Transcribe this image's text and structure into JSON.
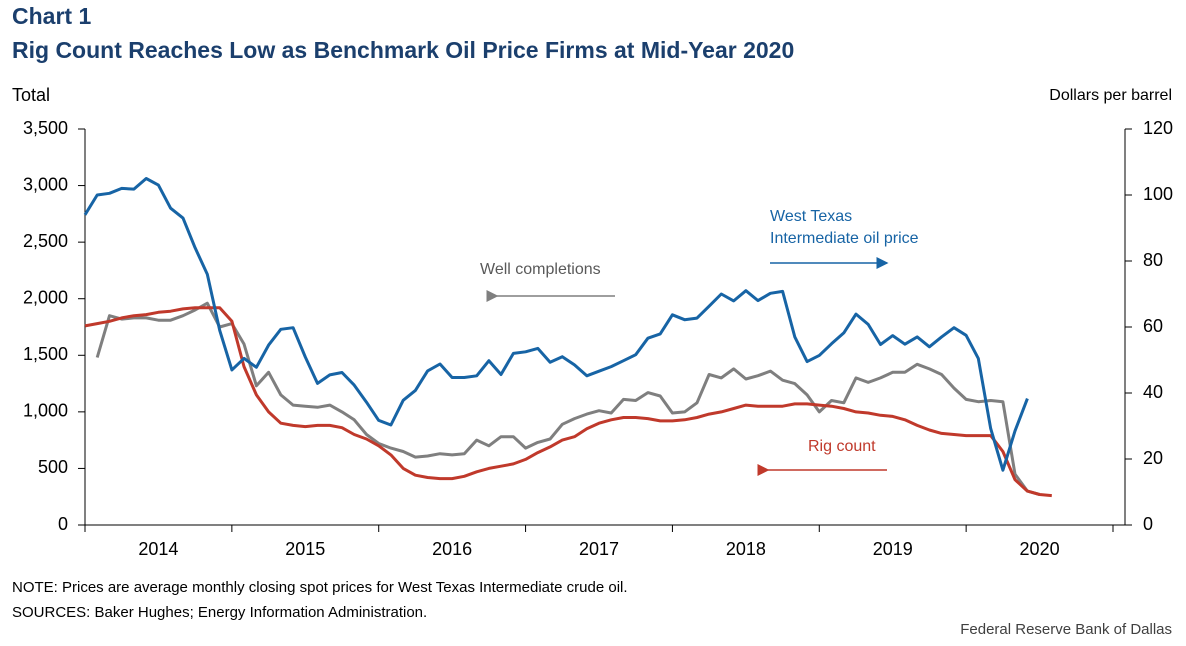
{
  "chart_data": {
    "type": "line",
    "title": "Chart 1",
    "subtitle": "Rig Count Reaches Low as Benchmark Oil Price Firms at Mid-Year 2020",
    "y_label": "Total",
    "y2_label": "Dollars per barrel",
    "ylim": [
      0,
      3500
    ],
    "yticks": [
      0,
      500,
      {
        "value": 1000,
        "label": "1,000"
      },
      {
        "value": 1500,
        "label": "1,500"
      },
      {
        "value": 2000,
        "label": "2,000"
      },
      {
        "value": 2500,
        "label": "2,500"
      },
      {
        "value": 3000,
        "label": "3,000"
      },
      {
        "value": 3500,
        "label": "3,500"
      }
    ],
    "y2lim": [
      0,
      120
    ],
    "y2ticks": [
      0,
      20,
      40,
      60,
      80,
      100,
      120
    ],
    "xlim": [
      2014,
      2021
    ],
    "xticks": [
      2014,
      2015,
      2016,
      2017,
      2018,
      2019,
      2020,
      2021
    ],
    "xtick_labels": [
      "2014",
      "2015",
      "2016",
      "2017",
      "2018",
      "2019",
      "2020"
    ],
    "x": [
      2014,
      2014.083,
      2014.167,
      2014.25,
      2014.333,
      2014.417,
      2014.5,
      2014.583,
      2014.667,
      2014.75,
      2014.833,
      2014.917,
      2015,
      2015.083,
      2015.167,
      2015.25,
      2015.333,
      2015.417,
      2015.5,
      2015.583,
      2015.667,
      2015.75,
      2015.833,
      2015.917,
      2016,
      2016.083,
      2016.167,
      2016.25,
      2016.333,
      2016.417,
      2016.5,
      2016.583,
      2016.667,
      2016.75,
      2016.833,
      2016.917,
      2017,
      2017.083,
      2017.167,
      2017.25,
      2017.333,
      2017.417,
      2017.5,
      2017.583,
      2017.667,
      2017.75,
      2017.833,
      2017.917,
      2018,
      2018.083,
      2018.167,
      2018.25,
      2018.333,
      2018.417,
      2018.5,
      2018.583,
      2018.667,
      2018.75,
      2018.833,
      2018.917,
      2019,
      2019.083,
      2019.167,
      2019.25,
      2019.333,
      2019.417,
      2019.5,
      2019.583,
      2019.667,
      2019.75,
      2019.833,
      2019.917,
      2020,
      2020.083,
      2020.167,
      2020.25,
      2020.333,
      2020.417,
      2020.5,
      2020.583
    ],
    "series": [
      {
        "name": "Well completions",
        "color": "#7f7f7f",
        "values": [
          null,
          1480,
          1850,
          1820,
          1830,
          1830,
          1810,
          1810,
          1850,
          1900,
          1960,
          1750,
          1780,
          1600,
          1230,
          1350,
          1150,
          1060,
          1050,
          1040,
          1060,
          1000,
          930,
          800,
          720,
          680,
          650,
          600,
          610,
          630,
          620,
          630,
          750,
          700,
          780,
          780,
          680,
          730,
          760,
          890,
          940,
          980,
          1010,
          990,
          1110,
          1100,
          1170,
          1140,
          990,
          1000,
          1080,
          1330,
          1300,
          1380,
          1290,
          1320,
          1360,
          1280,
          1250,
          1150,
          1000,
          1100,
          1080,
          1300,
          1260,
          1300,
          1350,
          1350,
          1420,
          1380,
          1330,
          1210,
          1110,
          1090,
          1100,
          1090,
          450,
          300,
          270,
          null
        ]
      },
      {
        "name": "Rig count",
        "color": "#c0392b",
        "values": [
          1760,
          1780,
          1800,
          1830,
          1850,
          1860,
          1880,
          1890,
          1910,
          1920,
          1920,
          1920,
          1800,
          1400,
          1150,
          1000,
          900,
          880,
          870,
          880,
          880,
          860,
          800,
          760,
          700,
          620,
          500,
          440,
          420,
          410,
          410,
          430,
          470,
          500,
          520,
          540,
          580,
          640,
          690,
          750,
          780,
          850,
          900,
          930,
          950,
          950,
          940,
          920,
          920,
          930,
          950,
          980,
          1000,
          1030,
          1060,
          1050,
          1050,
          1050,
          1070,
          1070,
          1060,
          1050,
          1030,
          1000,
          990,
          970,
          960,
          930,
          880,
          840,
          810,
          800,
          790,
          790,
          790,
          650,
          400,
          300,
          270,
          260
        ]
      },
      {
        "name": "West Texas Intermediate oil price",
        "color": "#1764a5",
        "axis": "y2",
        "values": [
          94,
          100,
          100.5,
          102,
          101.8,
          105,
          103,
          96,
          93,
          84,
          76,
          59,
          47,
          50.5,
          47.8,
          54.5,
          59.3,
          59.8,
          50.9,
          42.9,
          45.5,
          46.2,
          42.4,
          37.2,
          31.7,
          30.3,
          37.8,
          40.8,
          46.7,
          48.8,
          44.7,
          44.7,
          45.2,
          49.8,
          45.6,
          52,
          52.5,
          53.5,
          49.3,
          51,
          48.5,
          45.2,
          46.6,
          48,
          49.8,
          51.6,
          56.6,
          57.9,
          63.7,
          62.2,
          62.7,
          66.3,
          70,
          67.9,
          71,
          68,
          70.2,
          70.8,
          57,
          49.5,
          51.4,
          54.9,
          58.2,
          63.9,
          60.8,
          54.7,
          57.4,
          54.8,
          57,
          54,
          57,
          59.8,
          57.5,
          50.5,
          29.2,
          16.6,
          28.5,
          38.3,
          null,
          null
        ]
      }
    ],
    "annotations": [
      "West Texas",
      "Intermediate  oil price",
      "Well completions",
      "Rig count"
    ],
    "note": "NOTE: Prices are average monthly closing spot prices for West Texas Intermediate  crude oil.",
    "sources": "SOURCES:  Baker Hughes; Energy Information  Administration.",
    "credit": "Federal Reserve Bank of Dallas"
  }
}
